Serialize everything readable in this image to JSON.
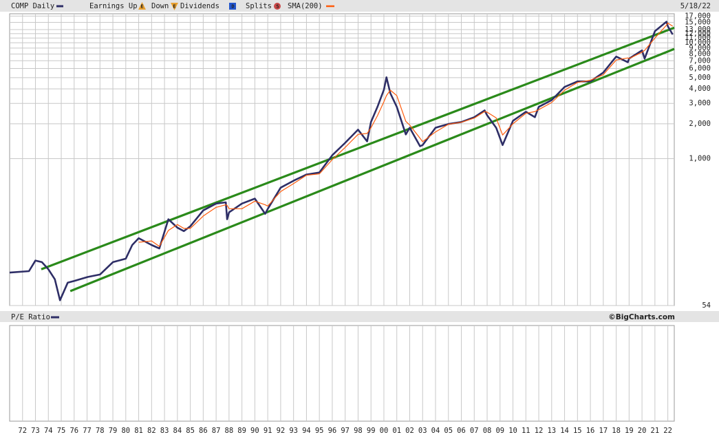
{
  "chart_data": {
    "type": "line",
    "log_y": true,
    "grid": true,
    "date": "5/18/22",
    "legend_items": [
      {
        "label": "Earnings Up",
        "icon": "E",
        "color": "#e8a030"
      },
      {
        "label": "Down",
        "icon": "E",
        "color": "#e8a030"
      },
      {
        "label": "Dividends",
        "icon": "D",
        "color": "#2255cc"
      },
      {
        "label": "Splits",
        "icon": "S",
        "color": "#c84848"
      }
    ],
    "lower_panel": {
      "title": "P/E Ratio"
    },
    "credit": "©BigCharts.com",
    "x": [
      1971.0,
      1972.5,
      1973.0,
      1973.5,
      1974.0,
      1974.5,
      1974.9,
      1975.5,
      1976.0,
      1977.0,
      1978.0,
      1979.0,
      1980.0,
      1980.5,
      1981.0,
      1982.0,
      1982.6,
      1983.3,
      1984.0,
      1984.5,
      1985.0,
      1986.0,
      1987.0,
      1987.75,
      1987.85,
      1988.0,
      1989.0,
      1990.0,
      1990.8,
      1991.0,
      1992.0,
      1993.0,
      1994.0,
      1995.0,
      1996.0,
      1997.0,
      1998.0,
      1998.7,
      1999.0,
      1999.5,
      2000.0,
      2000.2,
      2000.5,
      2001.0,
      2001.7,
      2002.0,
      2002.8,
      2003.0,
      2004.0,
      2005.0,
      2006.0,
      2007.0,
      2007.8,
      2008.0,
      2008.7,
      2009.2,
      2010.0,
      2011.0,
      2011.7,
      2012.0,
      2013.0,
      2014.0,
      2015.0,
      2016.0,
      2017.0,
      2018.0,
      2018.9,
      2019.0,
      2020.0,
      2020.2,
      2021.0,
      2021.9,
      2022.0,
      2022.38
    ],
    "series": [
      {
        "name": "COMP Daily",
        "color": "#2e2e66",
        "width": 2.6,
        "values": [
          104,
          107,
          132,
          128,
          111,
          91,
          60,
          85,
          88,
          95,
          100,
          128,
          137,
          180,
          206,
          180,
          168,
          300,
          254,
          237,
          261,
          358,
          410,
          420,
          300,
          344,
          410,
          452,
          334,
          368,
          562,
          645,
          730,
          760,
          1070,
          1370,
          1780,
          1410,
          2070,
          2800,
          3940,
          5040,
          3670,
          2800,
          1620,
          1850,
          1280,
          1310,
          1850,
          1990,
          2070,
          2280,
          2610,
          2370,
          1850,
          1310,
          2120,
          2540,
          2280,
          2800,
          3200,
          4160,
          4640,
          4640,
          5540,
          7600,
          6800,
          7300,
          8600,
          7300,
          12600,
          15200,
          13900,
          11800
        ]
      },
      {
        "name": "SMA(200)",
        "color": "#ff5a0a",
        "width": 1.2,
        "values": [
          null,
          null,
          null,
          null,
          null,
          null,
          null,
          null,
          null,
          null,
          null,
          null,
          null,
          null,
          190,
          195,
          175,
          240,
          270,
          250,
          250,
          320,
          380,
          400,
          395,
          370,
          370,
          430,
          400,
          390,
          520,
          610,
          720,
          740,
          980,
          1250,
          1620,
          1650,
          1850,
          2350,
          3100,
          3500,
          3900,
          3500,
          2100,
          1950,
          1500,
          1400,
          1700,
          1980,
          2060,
          2240,
          2550,
          2520,
          2250,
          1600,
          2000,
          2460,
          2550,
          2650,
          3050,
          3900,
          4550,
          4750,
          5300,
          7100,
          7400,
          7300,
          8300,
          8600,
          11000,
          14200,
          14800,
          13900
        ]
      }
    ],
    "trendlines": [
      {
        "color": "#2a8a1a",
        "x": [
          1973.45,
          2022.5
        ],
        "values": [
          111,
          13500
        ]
      },
      {
        "color": "#2a8a1a",
        "x": [
          1975.7,
          2022.5
        ],
        "values": [
          72,
          8850
        ]
      }
    ],
    "xlim": [
      1971.0,
      2022.5
    ],
    "xticks": [
      {
        "value": 1972,
        "label": "72"
      },
      {
        "value": 1973,
        "label": "73"
      },
      {
        "value": 1974,
        "label": "74"
      },
      {
        "value": 1975,
        "label": "75"
      },
      {
        "value": 1976,
        "label": "76"
      },
      {
        "value": 1977,
        "label": "77"
      },
      {
        "value": 1978,
        "label": "78"
      },
      {
        "value": 1979,
        "label": "79"
      },
      {
        "value": 1980,
        "label": "80"
      },
      {
        "value": 1981,
        "label": "81"
      },
      {
        "value": 1982,
        "label": "82"
      },
      {
        "value": 1983,
        "label": "83"
      },
      {
        "value": 1984,
        "label": "84"
      },
      {
        "value": 1985,
        "label": "85"
      },
      {
        "value": 1986,
        "label": "86"
      },
      {
        "value": 1987,
        "label": "87"
      },
      {
        "value": 1988,
        "label": "88"
      },
      {
        "value": 1989,
        "label": "89"
      },
      {
        "value": 1990,
        "label": "90"
      },
      {
        "value": 1991,
        "label": "91"
      },
      {
        "value": 1992,
        "label": "92"
      },
      {
        "value": 1993,
        "label": "93"
      },
      {
        "value": 1994,
        "label": "94"
      },
      {
        "value": 1995,
        "label": "95"
      },
      {
        "value": 1996,
        "label": "96"
      },
      {
        "value": 1997,
        "label": "97"
      },
      {
        "value": 1998,
        "label": "98"
      },
      {
        "value": 1999,
        "label": "99"
      },
      {
        "value": 2000,
        "label": "00"
      },
      {
        "value": 2001,
        "label": "01"
      },
      {
        "value": 2002,
        "label": "02"
      },
      {
        "value": 2003,
        "label": "03"
      },
      {
        "value": 2004,
        "label": "04"
      },
      {
        "value": 2005,
        "label": "05"
      },
      {
        "value": 2006,
        "label": "06"
      },
      {
        "value": 2007,
        "label": "07"
      },
      {
        "value": 2008,
        "label": "08"
      },
      {
        "value": 2009,
        "label": "09"
      },
      {
        "value": 2010,
        "label": "10"
      },
      {
        "value": 2011,
        "label": "11"
      },
      {
        "value": 2012,
        "label": "12"
      },
      {
        "value": 2013,
        "label": "13"
      },
      {
        "value": 2014,
        "label": "14"
      },
      {
        "value": 2015,
        "label": "15"
      },
      {
        "value": 2016,
        "label": "16"
      },
      {
        "value": 2017,
        "label": "17"
      },
      {
        "value": 2018,
        "label": "18"
      },
      {
        "value": 2019,
        "label": "19"
      },
      {
        "value": 2020,
        "label": "20"
      },
      {
        "value": 2021,
        "label": "21"
      },
      {
        "value": 2022,
        "label": "22"
      }
    ],
    "ylim": [
      54,
      17800
    ],
    "yticks": [
      54,
      {
        "value": 1000,
        "label": "1,000"
      },
      {
        "value": 2000,
        "label": "2,000"
      },
      {
        "value": 3000,
        "label": "3,000"
      },
      {
        "value": 4000,
        "label": "4,000"
      },
      {
        "value": 5000,
        "label": "5,000"
      },
      {
        "value": 6000,
        "label": "6,000"
      },
      {
        "value": 7000,
        "label": "7,000"
      },
      {
        "value": 8000,
        "label": "8,000"
      },
      {
        "value": 9000,
        "label": "9,000"
      },
      {
        "value": 10000,
        "label": "10,000"
      },
      {
        "value": 11000,
        "label": "11,000"
      },
      {
        "value": 12000,
        "label": "12,000"
      },
      {
        "value": 13000,
        "label": "13,000"
      },
      {
        "value": 15000,
        "label": "15,000"
      },
      {
        "value": 17000,
        "label": "17,000"
      }
    ]
  }
}
